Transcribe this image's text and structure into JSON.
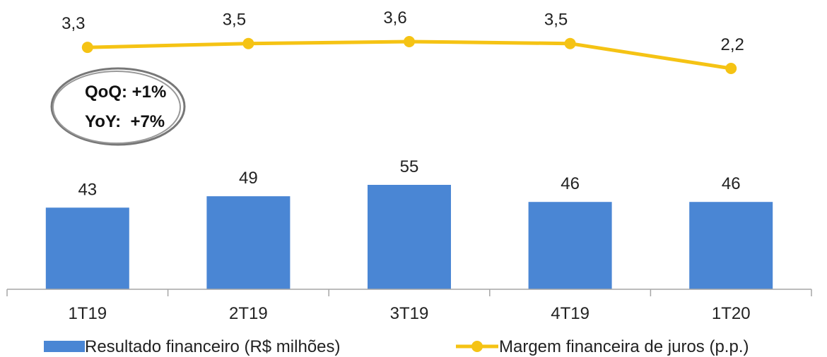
{
  "chart_data": {
    "type": "bar",
    "categories": [
      "1T19",
      "2T19",
      "3T19",
      "4T19",
      "1T20"
    ],
    "series": [
      {
        "name": "Resultado financeiro (R$ milhões)",
        "type": "bar",
        "values": [
          43,
          49,
          55,
          46,
          46
        ],
        "labels": [
          "43",
          "49",
          "55",
          "46",
          "46"
        ],
        "color": "#4A86D4"
      },
      {
        "name": "Margem financeira de juros (p.p.)",
        "type": "line",
        "values": [
          3.3,
          3.5,
          3.6,
          3.5,
          2.2
        ],
        "labels": [
          "3,3",
          "3,5",
          "3,6",
          "3,5",
          "2,2"
        ],
        "color": "#F5C314"
      }
    ],
    "bar_ylim": [
      0,
      62
    ],
    "line_ylim": [
      0,
      3.6
    ],
    "grid": false,
    "legend_position": "bottom",
    "annotations": [
      "QoQ: +1%",
      "YoY:  +7%"
    ]
  }
}
